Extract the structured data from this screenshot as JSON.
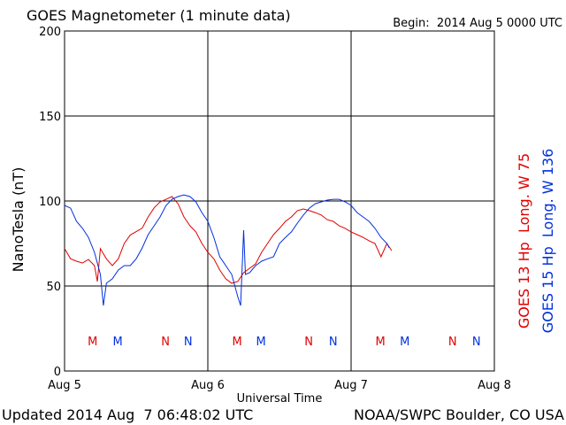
{
  "chart_data": {
    "type": "line",
    "title": "GOES Magnetometer (1 minute data)",
    "subtitle": "Begin:  2014 Aug 5 0000 UTC",
    "ylabel": "NanoTesla (nT)",
    "xlabel": "Universal Time",
    "footer_left": "Updated 2014 Aug  7 06:48:02 UTC",
    "footer_right": "NOAA/SWPC Boulder, CO USA",
    "xlim": [
      0,
      72
    ],
    "xticks": [
      {
        "value": 0,
        "label": "Aug 5"
      },
      {
        "value": 24,
        "label": "Aug 6"
      },
      {
        "value": 48,
        "label": "Aug 7"
      },
      {
        "value": 72,
        "label": "Aug 8"
      }
    ],
    "ylim": [
      0,
      200
    ],
    "yticks": [
      0,
      50,
      100,
      150,
      200
    ],
    "grid": true,
    "series": [
      {
        "name": "GOES 13 Hp  Long. W 75",
        "color": "#e00000",
        "x": [
          0,
          1,
          2,
          3,
          4,
          5,
          5.5,
          6,
          7,
          8,
          9,
          10,
          11,
          12,
          13,
          14,
          15,
          16,
          17,
          18,
          19,
          20,
          21,
          22,
          23,
          24,
          25,
          26,
          27,
          28,
          29,
          30,
          31,
          32,
          33,
          34,
          35,
          36,
          37,
          38,
          39,
          40,
          41,
          42,
          43,
          44,
          45,
          46,
          47,
          48,
          49,
          50,
          51,
          52,
          53,
          54,
          54.8
        ],
        "values": [
          72,
          66,
          64.6,
          63.5,
          65.6,
          62,
          52.6,
          72,
          66,
          62,
          66,
          75,
          80,
          82,
          84,
          90.6,
          96,
          99.5,
          101,
          102.6,
          98.4,
          90.6,
          85.4,
          81.8,
          75,
          69.8,
          66,
          59.4,
          54.2,
          51.6,
          52.6,
          57.8,
          60.4,
          63,
          69.8,
          75,
          80.2,
          83.9,
          88,
          90.6,
          94.3,
          95.3,
          94.3,
          93.2,
          91.7,
          89,
          88,
          85.4,
          83.9,
          81.8,
          80.2,
          78.6,
          76.6,
          75,
          67.2,
          75,
          70.8
        ]
      },
      {
        "name": "GOES 15 Hp  Long. W 136",
        "color": "#0030e0",
        "x": [
          0,
          1,
          2,
          3,
          4,
          5,
          6,
          6.5,
          7,
          8,
          9,
          10,
          11,
          12,
          13,
          14,
          15,
          16,
          17,
          18,
          19,
          20,
          21,
          22,
          23,
          24,
          25,
          26,
          27,
          28,
          29,
          29.5,
          30,
          30.3,
          31,
          32,
          33,
          34,
          35,
          36,
          37,
          38,
          39,
          40,
          41,
          42,
          43,
          44,
          45,
          46,
          47,
          48,
          49,
          50,
          51,
          52,
          53,
          54,
          54.4
        ],
        "values": [
          97.4,
          95.8,
          88,
          83.9,
          78.6,
          69.8,
          56.8,
          38.5,
          51.6,
          54.2,
          59.4,
          62,
          62,
          66,
          72.4,
          80.2,
          85.4,
          90.6,
          97.4,
          101,
          102.6,
          103.6,
          102.6,
          99.5,
          93.2,
          88,
          78.6,
          67.2,
          62,
          56.8,
          43.8,
          38.5,
          82.8,
          56.8,
          57.8,
          62,
          64.6,
          66,
          67.2,
          75,
          78.6,
          81.8,
          87,
          91.7,
          95.8,
          98.4,
          99.5,
          100.5,
          101,
          101,
          99.5,
          97.4,
          93.2,
          90.6,
          88,
          83.9,
          78.6,
          75,
          72.4
        ]
      }
    ],
    "markers": [
      {
        "label": "M",
        "x": 4.7,
        "series": 0
      },
      {
        "label": "M",
        "x": 8.9,
        "series": 1
      },
      {
        "label": "N",
        "x": 16.9,
        "series": 0
      },
      {
        "label": "N",
        "x": 20.7,
        "series": 1
      },
      {
        "label": "M",
        "x": 28.9,
        "series": 0
      },
      {
        "label": "M",
        "x": 32.9,
        "series": 1
      },
      {
        "label": "N",
        "x": 40.9,
        "series": 0
      },
      {
        "label": "N",
        "x": 45.0,
        "series": 1
      },
      {
        "label": "M",
        "x": 52.9,
        "series": 0
      },
      {
        "label": "M",
        "x": 57.0,
        "series": 1
      },
      {
        "label": "N",
        "x": 65.0,
        "series": 0
      },
      {
        "label": "N",
        "x": 69.0,
        "series": 1
      }
    ]
  }
}
